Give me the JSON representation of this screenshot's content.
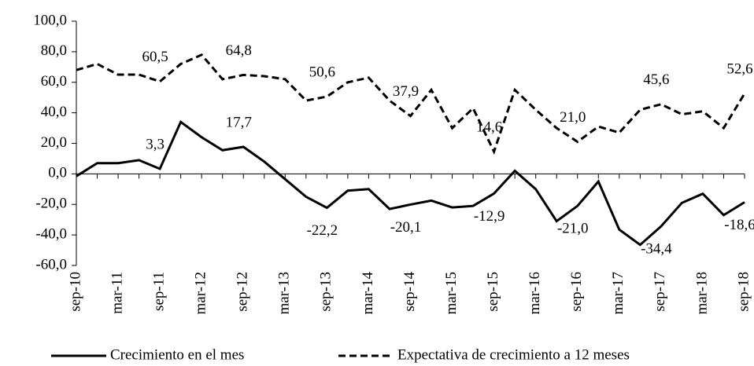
{
  "chart_data": {
    "type": "line",
    "categories": [
      "sep-10",
      null,
      "mar-11",
      null,
      "sep-11",
      null,
      "mar-12",
      null,
      "sep-12",
      null,
      "mar-13",
      null,
      "sep-13",
      null,
      "mar-14",
      null,
      "sep-14",
      null,
      "mar-15",
      null,
      "sep-15",
      null,
      "mar-16",
      null,
      "sep-16",
      null,
      "mar-17",
      null,
      "sep-17",
      null,
      "mar-18",
      null,
      "sep-18"
    ],
    "series": [
      {
        "name": "Crecimiento en el mes",
        "color": "#000000",
        "linestyle": "solid",
        "values": [
          -1.5,
          7,
          7,
          9,
          3.3,
          34,
          24,
          15.5,
          17.7,
          8,
          -3.5,
          -15,
          -22.2,
          -11,
          -10,
          -23,
          -20.1,
          -17.5,
          -22,
          -21,
          -12.9,
          2,
          -10,
          -31,
          -21.0,
          -5,
          -36.5,
          -46.5,
          -34.4,
          -19,
          -13,
          -27,
          -18.6
        ],
        "value_labels": [
          null,
          null,
          null,
          null,
          "3,3",
          null,
          null,
          null,
          "17,7",
          null,
          null,
          null,
          "-22,2",
          null,
          null,
          null,
          "-20,1",
          null,
          null,
          null,
          "-12,9",
          null,
          null,
          null,
          "-21,0",
          null,
          null,
          null,
          "-34,4",
          null,
          null,
          null,
          "-18,6"
        ]
      },
      {
        "name": "Expectativa de crecimiento a 12 meses",
        "color": "#000000",
        "linestyle": "dashed",
        "values": [
          68,
          72,
          65,
          65,
          60.5,
          72,
          78,
          62,
          64.8,
          64,
          62,
          48,
          50.6,
          60,
          63,
          48,
          37.9,
          55,
          30,
          43,
          14.6,
          55,
          42,
          30,
          21.0,
          31,
          27,
          42,
          45.6,
          39,
          41,
          30,
          52.6
        ],
        "value_labels": [
          null,
          null,
          null,
          null,
          "60,5",
          null,
          null,
          null,
          "64,8",
          null,
          null,
          null,
          "50,6",
          null,
          null,
          null,
          "37,9",
          null,
          null,
          null,
          "14,6",
          null,
          null,
          null,
          "21,0",
          null,
          null,
          null,
          "45,6",
          null,
          null,
          null,
          "52,6"
        ]
      }
    ],
    "ylim": [
      -60,
      100
    ],
    "yticks": [
      {
        "value": -60,
        "label": "-60,0"
      },
      {
        "value": -40,
        "label": "-40,0"
      },
      {
        "value": -20,
        "label": "-20,0"
      },
      {
        "value": 0,
        "label": "0,0"
      },
      {
        "value": 20,
        "label": "20,0"
      },
      {
        "value": 40,
        "label": "40,0"
      },
      {
        "value": 60,
        "label": "60,0"
      },
      {
        "value": 80,
        "label": "80,0"
      },
      {
        "value": 100,
        "label": "100,0"
      }
    ],
    "grid": false,
    "legend": "bottom"
  }
}
